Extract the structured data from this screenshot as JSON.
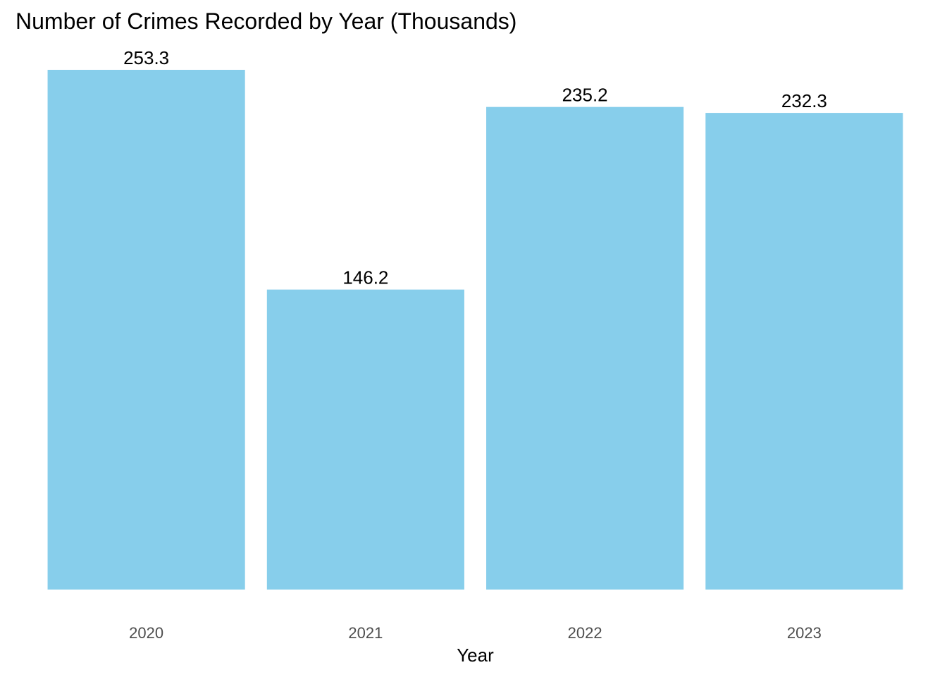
{
  "chart_data": {
    "type": "bar",
    "title": "Number of Crimes Recorded by Year (Thousands)",
    "xlabel": "Year",
    "ylabel": "",
    "categories": [
      "2020",
      "2021",
      "2022",
      "2023"
    ],
    "values": [
      253.3,
      146.2,
      235.2,
      232.3
    ],
    "value_labels": [
      "253.3",
      "146.2",
      "235.2",
      "232.3"
    ],
    "ylim": [
      0,
      253.3
    ],
    "bar_color": "#87CEEB",
    "grid": false,
    "legend": "none"
  }
}
